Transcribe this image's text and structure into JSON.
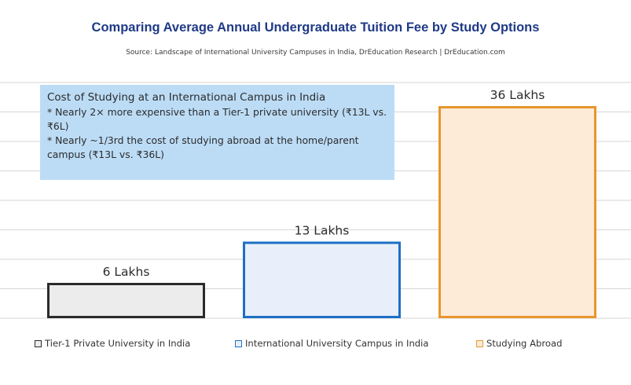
{
  "colors": {
    "title": "#1f3a86",
    "grid": "#d6d6d6",
    "note_bg": "#bcdcf6"
  },
  "header": {
    "title": "Comparing Average Annual Undergraduate Tuition Fee by Study Options",
    "source": "Source: Landscape of International University Campuses in India, DrEducation Research | DrEducation.com"
  },
  "note": {
    "heading": "Cost of Studying at an International Campus in India",
    "lines": [
      "* Nearly 2× more expensive than a Tier-1 private university (₹13L vs. ₹6L)",
      "* Nearly ~1/3rd the cost of studying abroad at the home/parent campus (₹13L vs. ₹36L)"
    ]
  },
  "chart_data": {
    "type": "bar",
    "title": "Comparing Average Annual Undergraduate Tuition Fee by Study Options",
    "unit": "Lakhs",
    "categories": [
      "Tier-1 Private University in India",
      "International University Campus in India",
      "Studying Abroad"
    ],
    "values": [
      6,
      13,
      36
    ],
    "data_labels": [
      "6 Lakhs",
      "13 Lakhs",
      "36 Lakhs"
    ],
    "ylim": [
      0,
      40
    ],
    "grid": true,
    "legend": "bottom",
    "series_colors": [
      {
        "fill": "#ececec",
        "stroke": "#2b2b2b"
      },
      {
        "fill": "#e8effb",
        "stroke": "#1e6fc4"
      },
      {
        "fill": "#fdebd8",
        "stroke": "#e8962e"
      }
    ]
  }
}
